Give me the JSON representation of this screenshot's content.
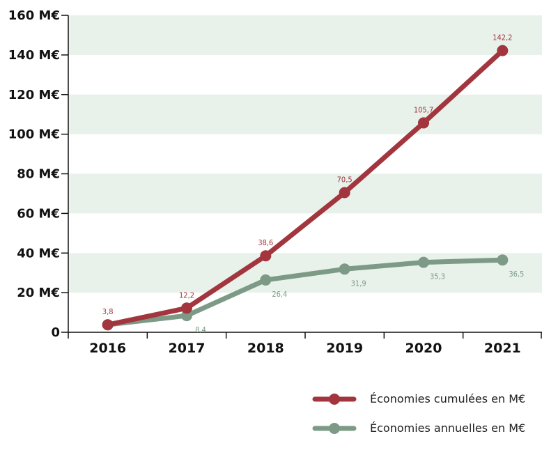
{
  "colors": {
    "band": "#e8f2ea",
    "axis": "#111111",
    "cumulative": "#a2353d",
    "annual": "#7d9a87"
  },
  "chart_data": {
    "type": "line",
    "x": [
      "2016",
      "2017",
      "2018",
      "2019",
      "2020",
      "2021"
    ],
    "ylim": [
      0,
      160
    ],
    "yticks": [
      0,
      20,
      40,
      60,
      80,
      100,
      120,
      140,
      160
    ],
    "ytick_labels": [
      "0",
      "20 M€",
      "40 M€",
      "60 M€",
      "80 M€",
      "100 M€",
      "120 M€",
      "140 M€",
      "160 M€"
    ],
    "grid": "alternating horizontal bands",
    "legend_position": "bottom-right",
    "series": [
      {
        "name": "Économies cumulées en M€",
        "color": "#a2353d",
        "values": [
          3.8,
          12.2,
          38.6,
          70.5,
          105.7,
          142.2
        ],
        "labels": [
          "3,8",
          "12,2",
          "38,6",
          "70,5",
          "105,7",
          "142,2"
        ]
      },
      {
        "name": "Économies annuelles en M€",
        "color": "#7d9a87",
        "values": [
          3.8,
          8.4,
          26.4,
          31.9,
          35.3,
          36.5
        ],
        "labels": [
          "",
          "8,4",
          "26,4",
          "31,9",
          "35,3",
          "36,5"
        ]
      }
    ]
  }
}
